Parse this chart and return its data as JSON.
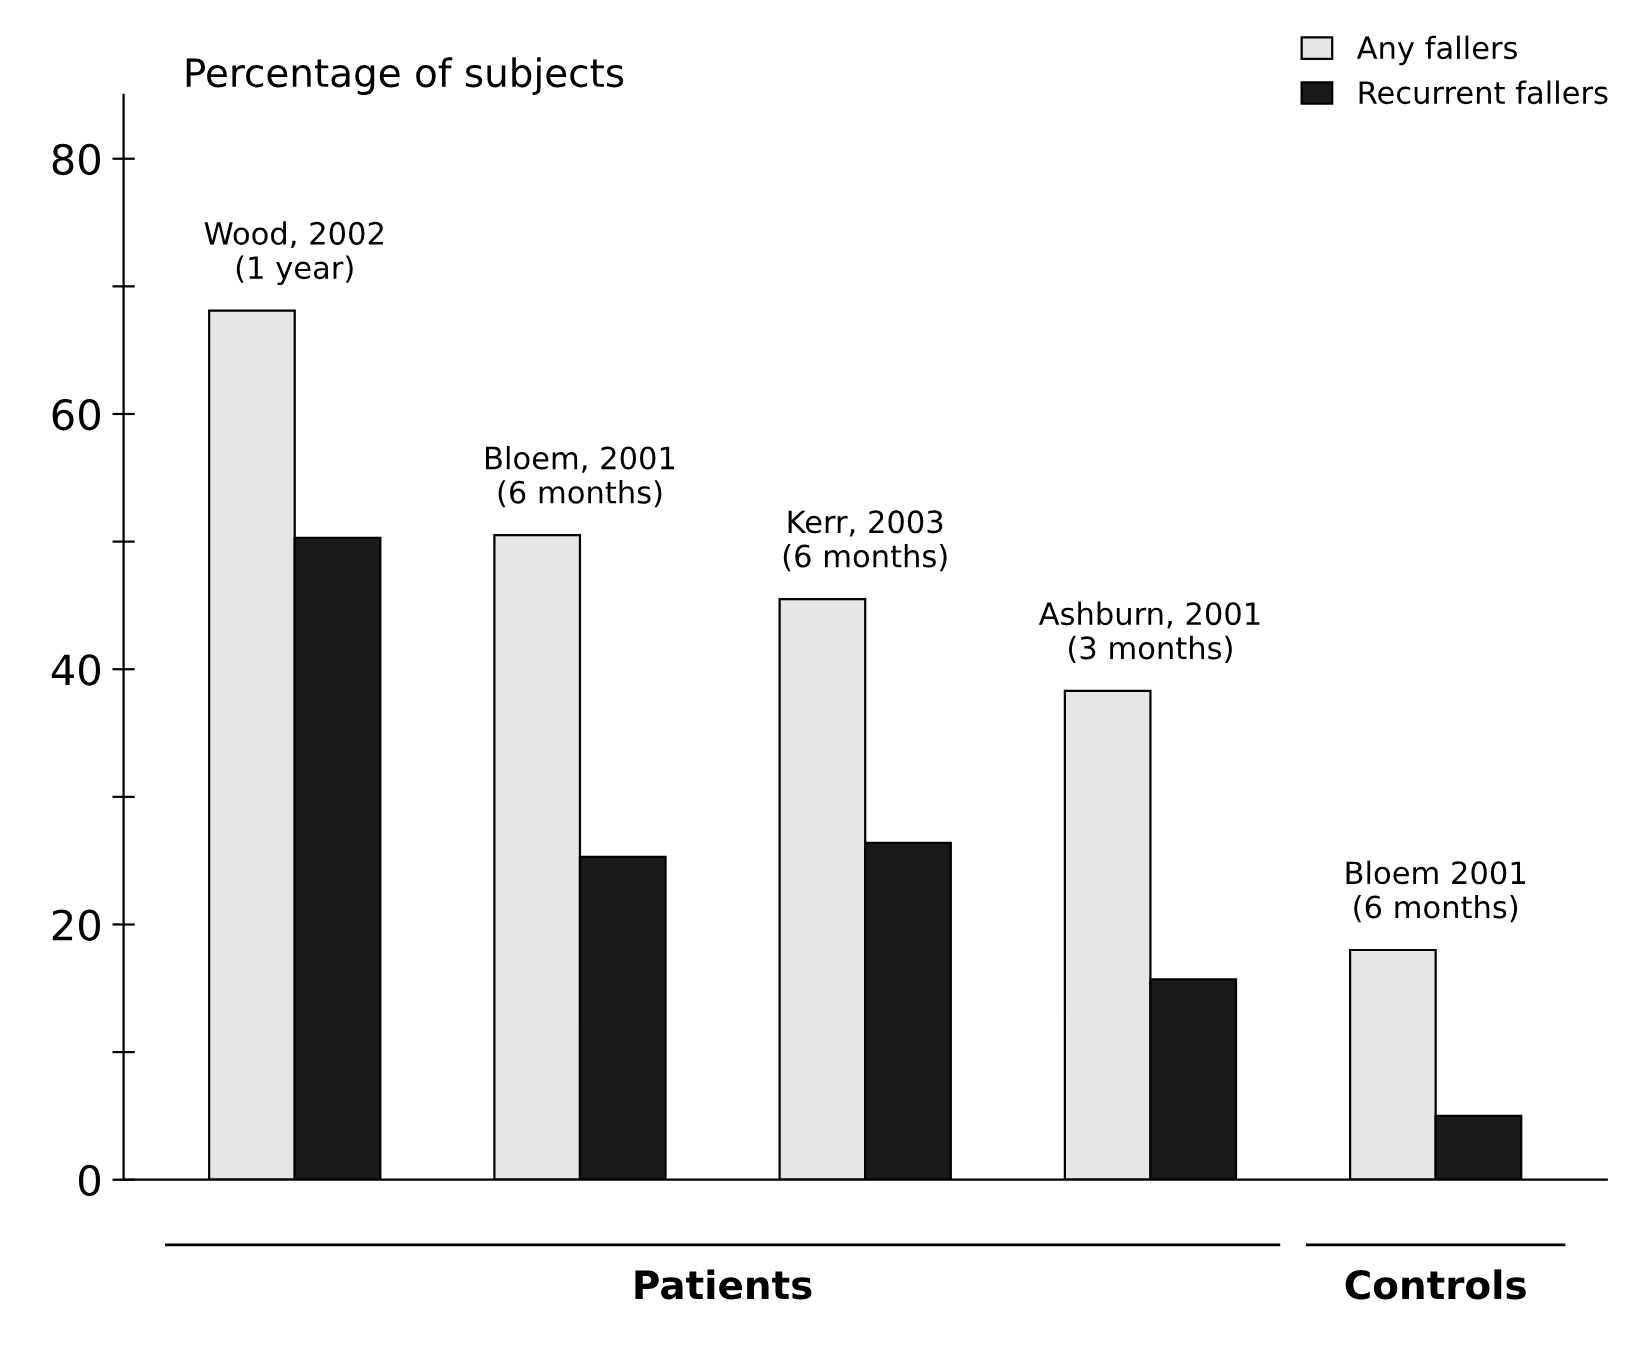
{
  "chart_data": {
    "type": "bar",
    "ylabel": "Percentage of subjects",
    "categories": [
      "Wood, 2002\n(1 year)",
      "Bloem, 2001\n(6 months)",
      "Kerr, 2003\n(6 months)",
      "Ashburn, 2001\n(3 months)",
      "Bloem 2001\n(6 months)"
    ],
    "series": [
      {
        "name": "Any fallers",
        "color": "#e6e6e6",
        "values": [
          68.1,
          50.5,
          45.5,
          38.3,
          18.0
        ]
      },
      {
        "name": "Recurrent fallers",
        "color": "#1a1a1a",
        "values": [
          50.3,
          25.3,
          26.4,
          15.7,
          5.0
        ]
      }
    ],
    "ylim": [
      0,
      85
    ],
    "yticks": [
      0,
      {
        "value": 10,
        "label": null
      },
      20,
      {
        "value": 30,
        "label": null
      },
      40,
      {
        "value": 50,
        "label": null
      },
      60,
      {
        "value": 70,
        "label": null
      },
      80
    ],
    "annotations": [
      "Patients",
      "Controls"
    ],
    "legend": "top right",
    "grid": false
  }
}
